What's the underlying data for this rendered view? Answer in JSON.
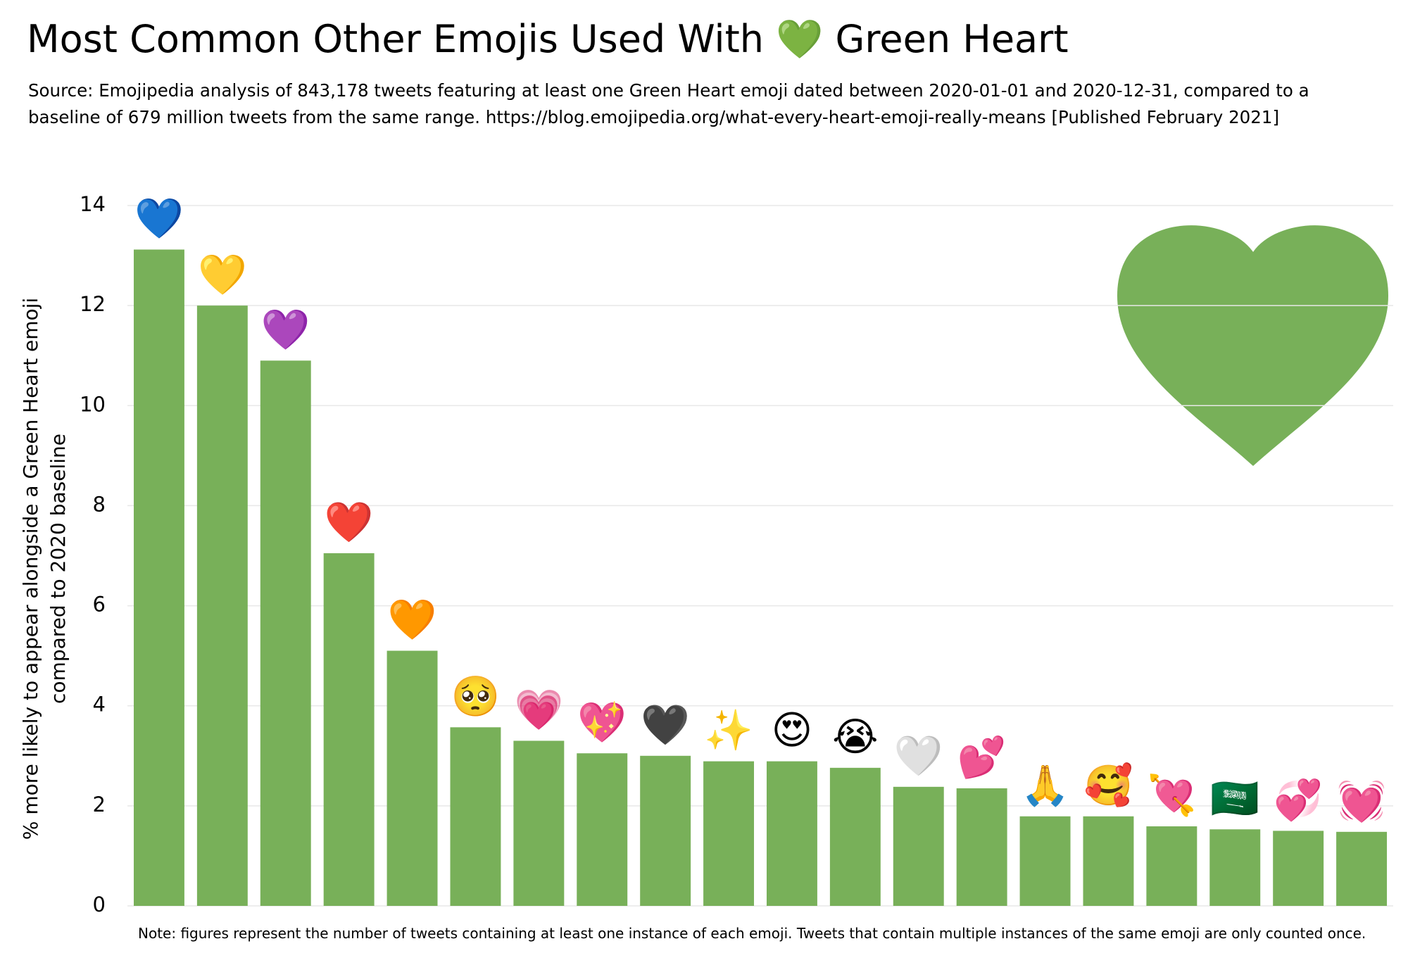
{
  "chart_data": {
    "type": "bar",
    "title": "Most Common Other Emojis Used With 💚 Green Heart",
    "subtitle": [
      "Source: Emojipedia analysis of 843,178 tweets featuring at least one Green Heart emoji dated between 2020-01-01 and 2020-12-31, compared to a",
      "baseline of 679 million tweets from the same range. https://blog.emojipedia.org/what-every-heart-emoji-really-means [Published February 2021]"
    ],
    "ylabel": [
      "% more likely to appear alongside a Green Heart emoji",
      "compared to 2020 baseline"
    ],
    "note": "Note: figures represent the number of tweets containing at least one instance of each emoji. Tweets that contain multiple instances of the same emoji are only counted once.",
    "categories": [
      "💙",
      "💛",
      "💜",
      "❤️",
      "🧡",
      "🥺",
      "💗",
      "💖",
      "🖤",
      "✨",
      "😍",
      "😭",
      "🤍",
      "💕",
      "🙏",
      "🥰",
      "💘",
      "🇸🇦",
      "💞",
      "💓"
    ],
    "values": [
      13.12,
      12.0,
      10.9,
      7.05,
      5.1,
      3.57,
      3.3,
      3.05,
      3.0,
      2.89,
      2.89,
      2.76,
      2.38,
      2.35,
      1.79,
      1.79,
      1.59,
      1.53,
      1.5,
      1.48
    ],
    "color": "#78b059",
    "ylim": [
      0,
      14
    ],
    "yticks": [
      0,
      2,
      4,
      6,
      8,
      10,
      12,
      14
    ],
    "grid": true
  }
}
